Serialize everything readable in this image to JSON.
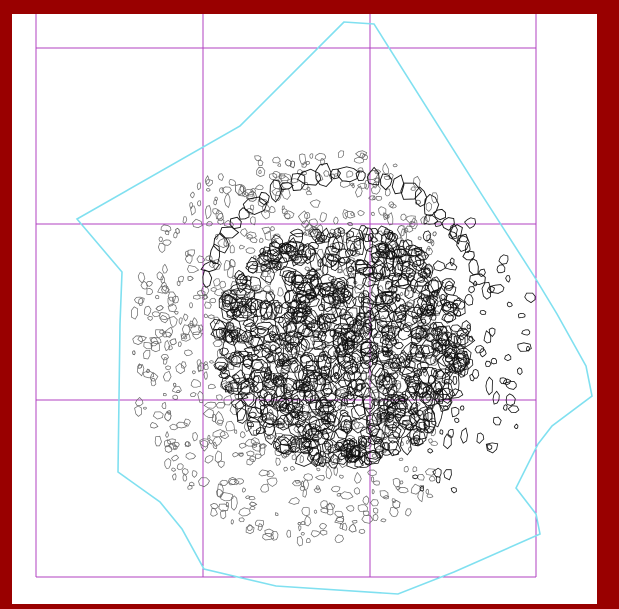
{
  "figure": {
    "kind": "archaeological excavation plan",
    "frame_color": "#990000",
    "grid_color": "#b040c0",
    "boundary_color": "#80e0f0",
    "stone_outline_dense_color": "#111111",
    "stone_outline_sparse_color": "#666666",
    "grid": {
      "columns": 3,
      "rows": 3
    }
  }
}
